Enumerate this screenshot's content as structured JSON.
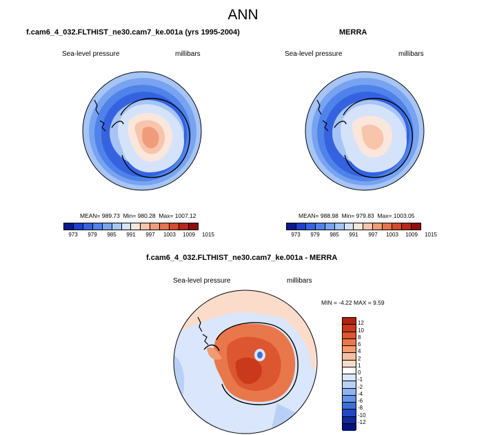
{
  "title": "ANN",
  "panels": [
    {
      "title": "f.cam6_4_032.FLTHIST_ne30.cam7_ke.001a (yrs 1995-2004)",
      "field_label": "Sea-level pressure",
      "units": "millibars",
      "mean_text": "MEAN= 989.73",
      "min_text": "Min= 980.28",
      "max_text": "Max= 1007.12"
    },
    {
      "title": "MERRA",
      "field_label": "Sea-level pressure",
      "units": "millibars",
      "mean_text": "MEAN= 988.98",
      "min_text": "Min= 979.83",
      "max_text": "Max= 1003.05"
    }
  ],
  "diff": {
    "title": "f.cam6_4_032.FLTHIST_ne30.cam7_ke.001a - MERRA",
    "field_label": "Sea-level pressure",
    "units": "millibars",
    "minmax_text": "MIN =  -4.22 MAX =   9.59"
  },
  "colorbar_main": {
    "colors": [
      "#0a1a8c",
      "#1f3fcf",
      "#3563e0",
      "#4f83ea",
      "#78a3f0",
      "#a6c4f5",
      "#d4e3fa",
      "#fbe6dc",
      "#f8c4ac",
      "#f09c7a",
      "#e57350",
      "#d34a2c",
      "#b8281a",
      "#8f0d0b"
    ],
    "tick_labels": [
      "973",
      "979",
      "985",
      "991",
      "997",
      "1003",
      "1009",
      "1015"
    ]
  },
  "colorbar_diff": {
    "colors": [
      "#b2220f",
      "#c93a1c",
      "#dc5630",
      "#e9774c",
      "#f29a72",
      "#f7bea0",
      "#fbdccb",
      "#ffffff",
      "#d9e6fb",
      "#b9d0f6",
      "#8fb3ef",
      "#6594e6",
      "#3e6fd9",
      "#2447c4",
      "#1028a0",
      "#04127a"
    ],
    "tick_labels": [
      "12",
      "10",
      "8",
      "6",
      "4",
      "2",
      "1",
      "0",
      "-1",
      "-2",
      "-4",
      "-6",
      "-8",
      "-10",
      "-12"
    ]
  }
}
